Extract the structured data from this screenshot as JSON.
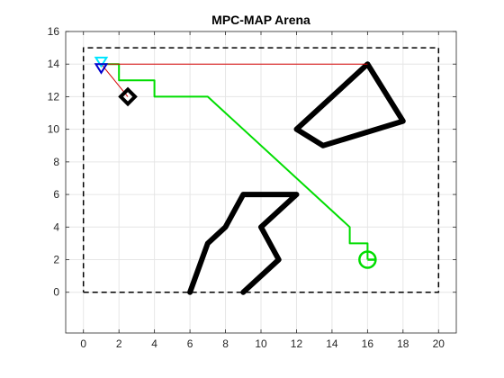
{
  "chart_data": {
    "type": "line",
    "title": "MPC-MAP Arena",
    "xlabel": "",
    "ylabel": "",
    "xlim": [
      -1,
      21
    ],
    "ylim": [
      -2.5,
      16
    ],
    "x_ticks": [
      0,
      2,
      4,
      6,
      8,
      10,
      12,
      14,
      16,
      18,
      20
    ],
    "y_ticks": [
      0,
      2,
      4,
      6,
      8,
      10,
      12,
      14,
      16
    ],
    "grid": true,
    "legend": "none",
    "series": [
      {
        "role": "arena-boundary",
        "style": "dashed",
        "color": "#000000",
        "x": [
          0,
          20,
          20,
          0,
          0
        ],
        "y": [
          0,
          0,
          15,
          15,
          0
        ]
      },
      {
        "role": "obstacle",
        "style": "solid-thick",
        "color": "#000000",
        "x": [
          6,
          7,
          8,
          9,
          12,
          10,
          11,
          9
        ],
        "y": [
          0,
          3,
          4,
          6,
          6,
          4,
          2,
          0
        ]
      },
      {
        "role": "obstacle",
        "style": "solid-thick",
        "color": "#000000",
        "x": [
          12,
          16,
          18,
          13.5,
          12
        ],
        "y": [
          10,
          14,
          10.5,
          9,
          10
        ]
      },
      {
        "role": "planned-path",
        "style": "solid",
        "color": "#00dd00",
        "x": [
          1,
          2,
          2,
          4,
          4,
          7,
          15,
          15,
          16,
          16
        ],
        "y": [
          14,
          14,
          13,
          13,
          12,
          12,
          4,
          3,
          3,
          2
        ]
      },
      {
        "role": "direct-line",
        "style": "solid-thin",
        "color": "#d40000",
        "x": [
          1,
          16
        ],
        "y": [
          14,
          14
        ]
      },
      {
        "role": "direct-line",
        "style": "solid-thin",
        "color": "#d40000",
        "x": [
          1,
          2.5
        ],
        "y": [
          14,
          12
        ]
      }
    ],
    "markers": [
      {
        "role": "goal",
        "shape": "circle",
        "color": "#00dd00",
        "x": 16,
        "y": 2
      },
      {
        "role": "start",
        "shape": "diamond",
        "color": "#000000",
        "x": 2.5,
        "y": 12
      },
      {
        "role": "robot-pose",
        "shape": "triangle",
        "color": "#00e5ff",
        "x": 1,
        "y": 14.2
      },
      {
        "role": "robot-estimate",
        "shape": "triangle",
        "color": "#0000cc",
        "x": 1,
        "y": 13.8
      }
    ]
  }
}
